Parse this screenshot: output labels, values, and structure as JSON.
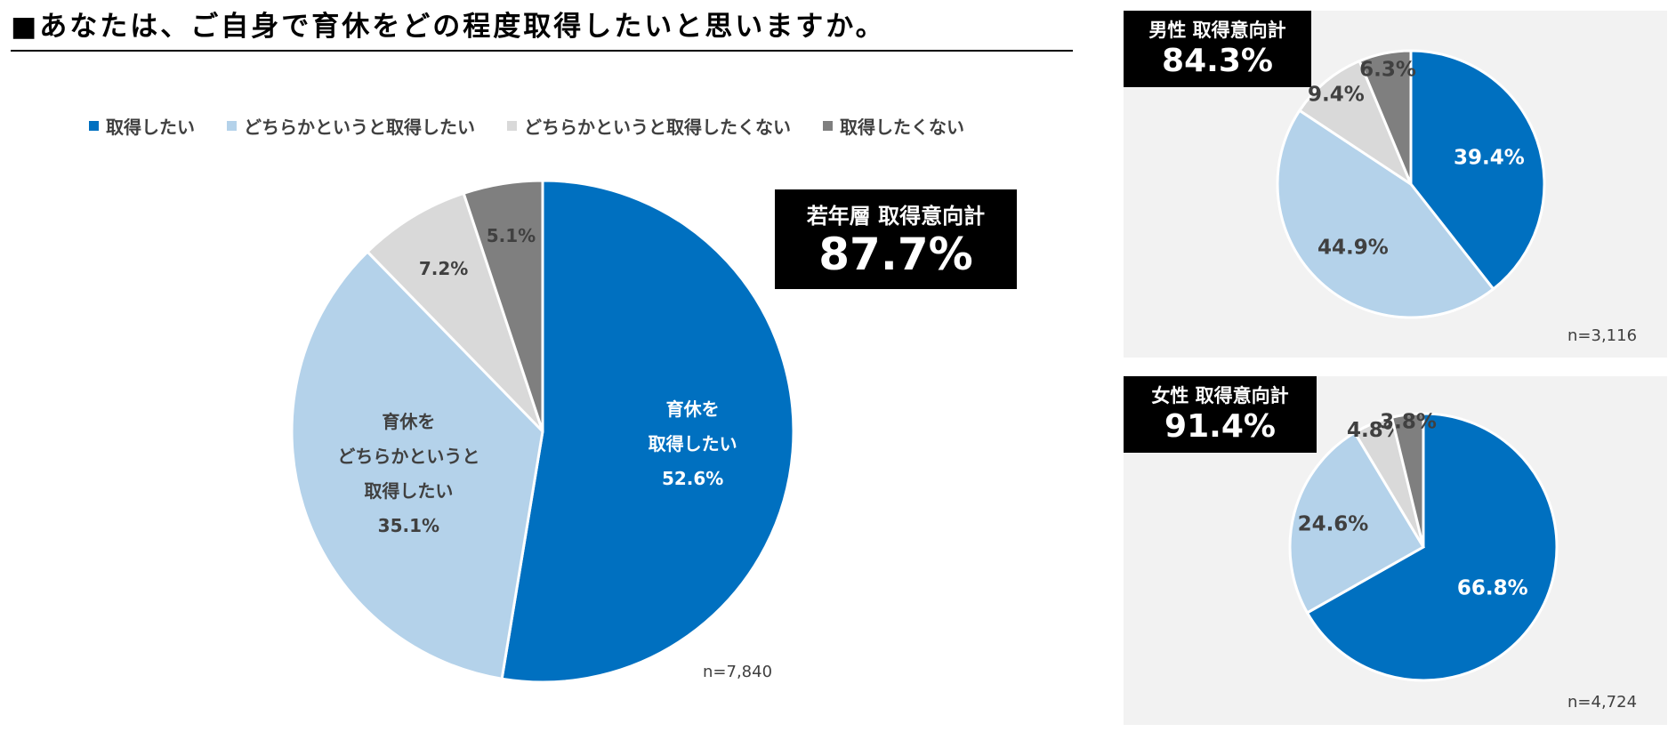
{
  "page_title": "■あなたは、ご自身で育休をどの程度取得したいと思いますか。",
  "colors": {
    "want": "#0070c0",
    "somewhat_want": "#b4d2ea",
    "somewhat_not_want": "#d9d9d9",
    "not_want": "#7f7f7f"
  },
  "legend": [
    {
      "label": "取得したい",
      "color": "#0070c0"
    },
    {
      "label": "どちらかというと取得したい",
      "color": "#b4d2ea"
    },
    {
      "label": "どちらかというと取得したくない",
      "color": "#d9d9d9"
    },
    {
      "label": "取得したくない",
      "color": "#7f7f7f"
    }
  ],
  "main": {
    "total_label": "若年層 取得意向計",
    "total_value": "87.7%",
    "n": "n=7,840"
  },
  "male": {
    "total_label": "男性 取得意向計",
    "total_value": "84.3%",
    "n": "n=3,116"
  },
  "female": {
    "total_label": "女性 取得意向計",
    "total_value": "91.4%",
    "n": "n=4,724"
  },
  "chart_data": [
    {
      "type": "pie",
      "name": "若年層",
      "categories": [
        "取得したい",
        "どちらかというと取得したい",
        "どちらかというと取得したくない",
        "取得したくない"
      ],
      "values": [
        52.6,
        35.1,
        7.2,
        5.1
      ],
      "labels": [
        [
          "育休を",
          "取得したい",
          "52.6%"
        ],
        [
          "育休を",
          "どちらかというと",
          "取得したい",
          "35.1%"
        ],
        [
          "7.2%"
        ],
        [
          "5.1%"
        ]
      ]
    },
    {
      "type": "pie",
      "name": "男性",
      "categories": [
        "取得したい",
        "どちらかというと取得したい",
        "どちらかというと取得したくない",
        "取得したくない"
      ],
      "values": [
        39.4,
        44.9,
        9.4,
        6.3
      ],
      "labels": [
        [
          "39.4%"
        ],
        [
          "44.9%"
        ],
        [
          "9.4%"
        ],
        [
          "6.3%"
        ]
      ]
    },
    {
      "type": "pie",
      "name": "女性",
      "categories": [
        "取得したい",
        "どちらかというと取得したい",
        "どちらかというと取得したくない",
        "取得したくない"
      ],
      "values": [
        66.8,
        24.6,
        4.8,
        3.8
      ],
      "labels": [
        [
          "66.8%"
        ],
        [
          "24.6%"
        ],
        [
          "4.8%"
        ],
        [
          "3.8%"
        ]
      ]
    }
  ]
}
